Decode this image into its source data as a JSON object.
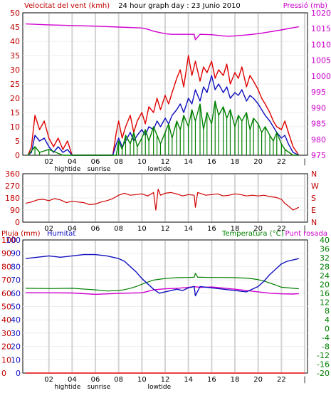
{
  "chart_data": [
    {
      "type": "line",
      "title": "24 hour graph day : 23 Junio 2010",
      "ylabel": "Velocitat del vent (kmh)",
      "y2label": "Pressió (mb)",
      "ylim": [
        0,
        50
      ],
      "y2lim": [
        975,
        1020
      ],
      "yticks": [
        "0",
        "5",
        "10",
        "15",
        "20",
        "25",
        "30",
        "35",
        "40",
        "45",
        "50"
      ],
      "y2ticks": [
        "975",
        "980",
        "985",
        "990",
        "995",
        "1000",
        "1005",
        "1010",
        "1015",
        "1020"
      ],
      "x_ticks": [
        "02",
        "04",
        "06",
        "08",
        "10",
        "12",
        "14",
        "16",
        "18",
        "20",
        "22",
        "|"
      ],
      "x_annotations": [
        {
          "label": "hightide",
          "x": 3.6
        },
        {
          "label": "sunrise",
          "x": 6.3
        },
        {
          "label": "lowtide",
          "x": 11.5
        }
      ],
      "series": [
        {
          "key": "gust",
          "color": "#e00000",
          "axis": "left",
          "x": [
            0.2,
            0.5,
            0.8,
            1.2,
            1.6,
            2.0,
            2.4,
            2.8,
            3.2,
            3.6,
            4.0,
            4.5,
            5.0,
            5.5,
            6.0,
            6.5,
            7.0,
            7.5,
            7.8,
            8.0,
            8.3,
            8.6,
            9.0,
            9.3,
            9.6,
            10.0,
            10.3,
            10.6,
            11.0,
            11.3,
            11.6,
            12.0,
            12.3,
            12.6,
            13.0,
            13.3,
            13.6,
            14.0,
            14.3,
            14.6,
            15.0,
            15.3,
            15.6,
            16.0,
            16.3,
            16.6,
            17.0,
            17.3,
            17.6,
            18.0,
            18.3,
            18.6,
            19.0,
            19.3,
            19.6,
            20.0,
            20.3,
            20.6,
            21.0,
            21.3,
            21.6,
            22.0,
            22.3,
            22.6,
            23.0,
            23.5
          ],
          "y": [
            0,
            3,
            14,
            9,
            12,
            6,
            3,
            6,
            2,
            5,
            0,
            0,
            0,
            0,
            0,
            0,
            0,
            0,
            8,
            12,
            6,
            10,
            14,
            8,
            12,
            15,
            11,
            17,
            15,
            20,
            16,
            21,
            18,
            22,
            27,
            30,
            24,
            35,
            28,
            33,
            26,
            31,
            29,
            33,
            27,
            30,
            28,
            32,
            25,
            29,
            27,
            31,
            24,
            28,
            26,
            23,
            20,
            18,
            15,
            12,
            10,
            9,
            12,
            8,
            3,
            0
          ]
        },
        {
          "key": "avg",
          "color": "#1010c0",
          "axis": "left",
          "x": [
            0.2,
            0.5,
            0.8,
            1.2,
            1.6,
            2.0,
            2.4,
            2.8,
            3.2,
            3.6,
            4.0,
            4.5,
            5.0,
            5.5,
            6.0,
            6.5,
            7.0,
            7.5,
            7.8,
            8.0,
            8.3,
            8.6,
            9.0,
            9.3,
            9.6,
            10.0,
            10.3,
            10.6,
            11.0,
            11.3,
            11.6,
            12.0,
            12.3,
            12.6,
            13.0,
            13.3,
            13.6,
            14.0,
            14.3,
            14.6,
            15.0,
            15.3,
            15.6,
            16.0,
            16.3,
            16.6,
            17.0,
            17.3,
            17.6,
            18.0,
            18.3,
            18.6,
            19.0,
            19.3,
            19.6,
            20.0,
            20.3,
            20.6,
            21.0,
            21.3,
            21.6,
            22.0,
            22.3,
            22.6,
            23.0,
            23.5
          ],
          "y": [
            0,
            1,
            7,
            5,
            6,
            3,
            1,
            3,
            1,
            2,
            0,
            0,
            0,
            0,
            0,
            0,
            0,
            0,
            4,
            6,
            3,
            5,
            8,
            5,
            7,
            9,
            7,
            10,
            9,
            12,
            10,
            13,
            11,
            14,
            16,
            18,
            15,
            20,
            18,
            23,
            19,
            24,
            22,
            28,
            23,
            25,
            22,
            24,
            20,
            22,
            21,
            23,
            19,
            21,
            20,
            18,
            16,
            14,
            12,
            10,
            8,
            6,
            7,
            4,
            1,
            0
          ]
        },
        {
          "key": "min",
          "color": "#008000",
          "axis": "left",
          "x": [
            0.2,
            0.8,
            1.2,
            2.0,
            3.2,
            4.0,
            5.0,
            6.0,
            7.0,
            7.8,
            8.0,
            8.3,
            8.6,
            9.0,
            9.3,
            9.6,
            10.0,
            10.3,
            10.6,
            11.0,
            11.3,
            11.6,
            12.0,
            12.3,
            12.6,
            13.0,
            13.3,
            13.6,
            14.0,
            14.3,
            14.6,
            15.0,
            15.3,
            15.6,
            16.0,
            16.3,
            16.6,
            17.0,
            17.3,
            17.6,
            18.0,
            18.3,
            18.6,
            19.0,
            19.3,
            19.6,
            20.0,
            20.3,
            20.6,
            21.0,
            21.3,
            21.6,
            22.0,
            22.3,
            23.0,
            23.5
          ],
          "y": [
            0,
            3,
            1,
            2,
            0,
            0,
            0,
            0,
            0,
            0,
            5,
            2,
            7,
            4,
            8,
            3,
            6,
            9,
            5,
            10,
            7,
            4,
            8,
            11,
            6,
            12,
            9,
            14,
            10,
            16,
            12,
            18,
            9,
            15,
            11,
            19,
            14,
            17,
            13,
            16,
            10,
            14,
            12,
            15,
            9,
            13,
            11,
            8,
            10,
            7,
            5,
            8,
            4,
            2,
            0,
            0
          ]
        },
        {
          "key": "pressure",
          "color": "#d000d0",
          "axis": "right",
          "x": [
            0,
            2,
            4,
            6,
            8,
            10,
            10.5,
            11,
            11.5,
            12,
            12.5,
            13,
            13.5,
            14,
            14.5,
            14.6,
            15,
            16,
            17,
            17.5,
            18,
            19,
            20,
            21,
            22,
            23,
            23.5
          ],
          "y": [
            1016.5,
            1016.2,
            1016,
            1015.8,
            1015.5,
            1015.2,
            1014.8,
            1014.2,
            1013.8,
            1013.4,
            1013.2,
            1013.2,
            1013.2,
            1013.2,
            1013.2,
            1011.5,
            1013.2,
            1013.1,
            1012.7,
            1012.6,
            1012.7,
            1013,
            1013.4,
            1014,
            1014.6,
            1015.3,
            1015.6
          ]
        }
      ]
    },
    {
      "type": "line",
      "yticks": [
        "0",
        "90",
        "180",
        "270",
        "360"
      ],
      "y2ticks": [
        "N",
        "W",
        "S",
        "E",
        "N"
      ],
      "ylim": [
        0,
        360
      ],
      "x_ticks": [
        "02",
        "04",
        "06",
        "08",
        "10",
        "12",
        "14",
        "16",
        "18",
        "20",
        "22",
        "|"
      ],
      "series": [
        {
          "key": "dir",
          "color": "#d00000",
          "x": [
            0,
            0.5,
            1,
            1.5,
            2,
            2.5,
            3,
            3.5,
            4,
            4.5,
            5,
            5.5,
            6,
            6.5,
            7,
            7.5,
            8,
            8.5,
            9,
            9.5,
            10,
            10.5,
            11,
            11.2,
            11.4,
            11.6,
            12,
            12.5,
            13,
            13.5,
            14,
            14.5,
            14.6,
            14.8,
            15,
            15.5,
            16,
            16.5,
            17,
            17.5,
            18,
            18.5,
            19,
            19.5,
            20,
            20.5,
            21,
            21.5,
            22,
            22.3,
            22.6,
            23,
            23.5
          ],
          "y": [
            140,
            150,
            165,
            170,
            160,
            175,
            165,
            145,
            155,
            150,
            145,
            130,
            135,
            150,
            160,
            175,
            200,
            215,
            200,
            205,
            210,
            195,
            220,
            90,
            245,
            200,
            215,
            220,
            210,
            195,
            205,
            200,
            110,
            220,
            215,
            200,
            205,
            210,
            195,
            200,
            210,
            205,
            195,
            200,
            195,
            200,
            190,
            185,
            170,
            140,
            120,
            90,
            110
          ]
        }
      ]
    },
    {
      "type": "line",
      "ylabel": "Pluja (mm)",
      "ylabel2": "Humitat",
      "y2label": "Temperatura (°C)",
      "y3label": "Punt rosada",
      "yticks_rain": [
        "0",
        "10",
        "20",
        "30",
        "40",
        "50",
        "60",
        "70",
        "80",
        "90",
        "100"
      ],
      "yticks_hum": [
        "0",
        "10",
        "20",
        "30",
        "40",
        "50",
        "60",
        "70",
        "80",
        "90",
        "100"
      ],
      "y2ticks": [
        "-20",
        "-16",
        "-12",
        "-8",
        "-4",
        "0",
        "4",
        "8",
        "12",
        "16",
        "20",
        "24",
        "28",
        "32",
        "36",
        "40"
      ],
      "ylim": [
        0,
        100
      ],
      "y2lim": [
        -20,
        40
      ],
      "x_ticks": [
        "02",
        "04",
        "06",
        "08",
        "10",
        "12",
        "14",
        "16",
        "18",
        "20",
        "22",
        "|"
      ],
      "x_annotations": [
        {
          "label": "hightide",
          "x": 3.6
        },
        {
          "label": "sunrise",
          "x": 6.3
        },
        {
          "label": "lowtide",
          "x": 11.5
        }
      ],
      "series": [
        {
          "key": "rain",
          "color": "#e00000",
          "axis": "left",
          "x": [
            0,
            24
          ],
          "y": [
            0,
            0
          ]
        },
        {
          "key": "humidity",
          "color": "#1010c0",
          "axis": "left",
          "x": [
            0,
            1,
            2,
            3,
            4,
            5,
            6,
            7,
            8,
            8.5,
            9,
            9.5,
            10,
            10.5,
            11,
            11.5,
            12,
            12.5,
            13,
            13.5,
            14,
            14.5,
            14.6,
            15,
            16,
            17,
            18,
            19,
            20,
            20.5,
            21,
            21.5,
            22,
            22.5,
            23,
            23.5
          ],
          "y": [
            86,
            87,
            88,
            87,
            88,
            89,
            89,
            88,
            86,
            84,
            80,
            76,
            71,
            67,
            63,
            60,
            61,
            62,
            63,
            62,
            64,
            65,
            58,
            65,
            64,
            63,
            62,
            61,
            65,
            69,
            74,
            78,
            82,
            84,
            85,
            86
          ]
        },
        {
          "key": "temperature",
          "color": "#008000",
          "axis": "right",
          "x": [
            0,
            2,
            4,
            6,
            7,
            8,
            8.5,
            9,
            9.5,
            10,
            10.5,
            11,
            12,
            13,
            14,
            14.5,
            14.6,
            14.8,
            15,
            16,
            17,
            18,
            19,
            19.5,
            20,
            20.5,
            21,
            21.5,
            22,
            23,
            23.5
          ],
          "y": [
            18.2,
            18.1,
            18.2,
            17.5,
            17,
            17.2,
            17.6,
            18.2,
            19,
            20,
            21,
            21.9,
            22.6,
            23,
            23.1,
            23.2,
            25,
            23.2,
            23.2,
            23.1,
            23.1,
            23,
            22.8,
            22.5,
            22.1,
            21.5,
            20.6,
            19.7,
            18.7,
            18.2,
            18.0
          ]
        },
        {
          "key": "dewpoint",
          "color": "#d000d0",
          "axis": "right",
          "x": [
            0,
            2,
            4,
            6,
            8,
            10,
            10.5,
            11,
            12,
            13,
            14,
            14.5,
            15,
            16,
            17,
            18,
            19,
            20,
            21,
            22,
            23,
            23.5
          ],
          "y": [
            16.2,
            16.2,
            16.1,
            15.5,
            15.9,
            16.2,
            16.8,
            17.5,
            18,
            18.2,
            18.6,
            19,
            18.6,
            18.8,
            18.3,
            17.8,
            17.2,
            16.6,
            16,
            15.7,
            15.6,
            15.8
          ]
        }
      ]
    }
  ]
}
